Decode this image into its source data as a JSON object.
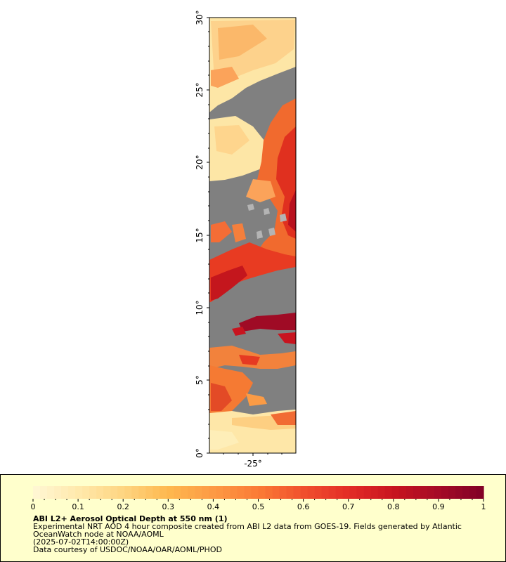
{
  "map": {
    "lat_ticks": [
      "0°",
      "5°",
      "10°",
      "15°",
      "20°",
      "25°",
      "30°"
    ],
    "lon_ticks": [
      "-25°"
    ],
    "no_data_color": "#808080",
    "land_color": "#b4b4b4"
  },
  "colorbar": {
    "min": 0,
    "max": 1,
    "tick_labels": [
      "0",
      "0.1",
      "0.2",
      "0.3",
      "0.4",
      "0.5",
      "0.6",
      "0.7",
      "0.8",
      "0.9",
      "1"
    ],
    "colors": [
      "#fff7d5",
      "#ffe9ac",
      "#fed581",
      "#feb84f",
      "#fd9a44",
      "#fb7b35",
      "#f0502d",
      "#e32d26",
      "#c8141f",
      "#a50b26",
      "#800026"
    ]
  },
  "caption": {
    "title": "ABI L2+ Aerosol Optical Depth at 550 nm (1)",
    "line1": "Experimental NRT AOD 4 hour composite created from ABI L2 data from GOES-19. Fields generated by Atlantic",
    "line2": "OceanWatch node at NOAA/AOML",
    "line3": "(2025-07-02T14:00:00Z)",
    "line4": "Data courtesy of USDOC/NOAA/OAR/AOML/PHOD"
  }
}
